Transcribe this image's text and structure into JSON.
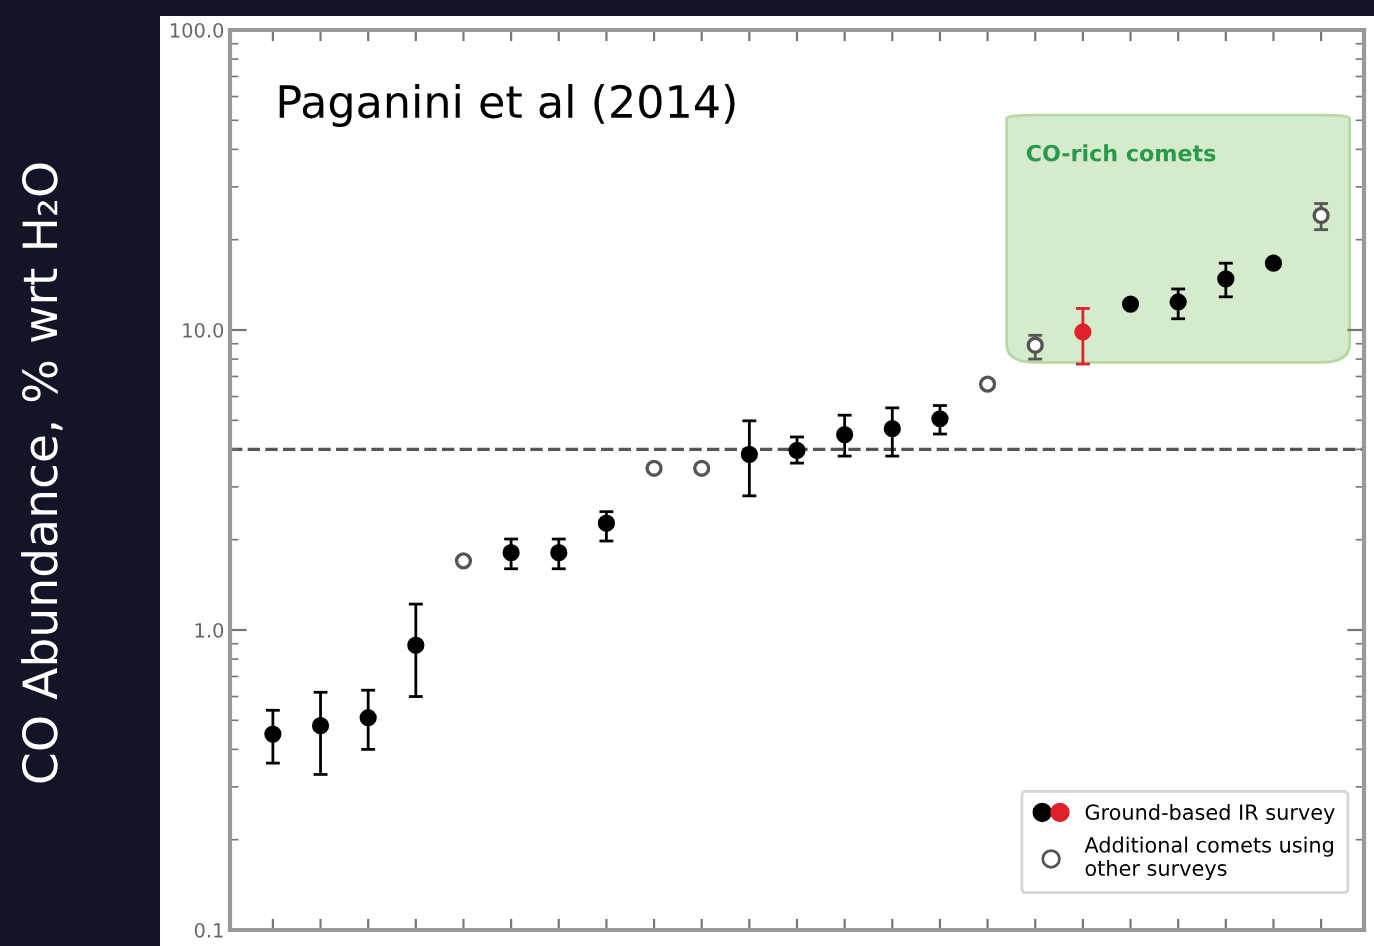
{
  "chart_data": {
    "type": "scatter",
    "title": "Paganini et al (2014)",
    "ylabel": "CO Abundance, % wrt H₂O",
    "categories": [
      null,
      null,
      null,
      null,
      null,
      null,
      null,
      null,
      null,
      null,
      null,
      null,
      null,
      null,
      null,
      null,
      null,
      null,
      null,
      null,
      null,
      null,
      null
    ],
    "series": [
      {
        "name": "Ground-based IR survey",
        "color": "#000000",
        "marker": "circle",
        "colors": [
          "#000000",
          "#000000",
          "#000000",
          "#000000",
          null,
          "#000000",
          "#000000",
          "#000000",
          null,
          null,
          "#000000",
          "#000000",
          "#000000",
          "#000000",
          "#000000",
          null,
          null,
          "#e0202a",
          "#000000",
          "#000000",
          "#000000",
          "#000000",
          null
        ],
        "values": [
          0.45,
          0.48,
          0.51,
          0.89,
          null,
          1.81,
          1.81,
          2.27,
          null,
          null,
          3.85,
          3.97,
          4.48,
          4.69,
          5.06,
          null,
          null,
          9.85,
          12.2,
          12.4,
          14.8,
          16.7,
          null
        ],
        "errors": [
          [
            0.36,
            0.54
          ],
          [
            0.33,
            0.62
          ],
          [
            0.4,
            0.63
          ],
          [
            0.6,
            1.22
          ],
          null,
          [
            1.6,
            2.01
          ],
          [
            1.6,
            2.01
          ],
          [
            1.98,
            2.48
          ],
          null,
          null,
          [
            2.8,
            4.98
          ],
          [
            3.6,
            4.4
          ],
          [
            3.8,
            5.2
          ],
          [
            3.8,
            5.5
          ],
          [
            4.5,
            5.6
          ],
          null,
          null,
          [
            7.7,
            11.8
          ],
          null,
          [
            10.9,
            13.7
          ],
          [
            12.9,
            16.7
          ],
          null,
          null
        ]
      },
      {
        "name": "Additional comets using\nother surveys",
        "color": "#555555",
        "marker": "open circle",
        "values": [
          null,
          null,
          null,
          null,
          1.7,
          null,
          null,
          null,
          3.46,
          3.46,
          null,
          null,
          null,
          null,
          null,
          6.6,
          8.9,
          null,
          null,
          null,
          null,
          null,
          24.1
        ],
        "errors": [
          null,
          null,
          null,
          null,
          null,
          null,
          null,
          null,
          null,
          null,
          null,
          null,
          null,
          null,
          null,
          null,
          [
            8.0,
            9.6
          ],
          null,
          null,
          null,
          null,
          null,
          [
            21.6,
            26.4
          ]
        ]
      }
    ],
    "ylim": [
      0.1,
      100
    ],
    "yticks": [
      {
        "value": 0.1,
        "label": "0.1"
      },
      {
        "value": 1,
        "label": "1.0"
      },
      {
        "value": 10,
        "label": "10.0"
      },
      {
        "value": 100,
        "label": "100.0"
      }
    ],
    "log": "y",
    "tick_labels": "y",
    "ref_lines": [
      {
        "axis": "y",
        "value": 4,
        "line_style": "dashed",
        "color": "#555555"
      }
    ],
    "bands": [
      {
        "axis": "y",
        "from": 7.8,
        "to": 52,
        "label": "CO-rich comets",
        "color": "#d6ebcc"
      }
    ],
    "legend": "bottom right",
    "grid": false
  }
}
